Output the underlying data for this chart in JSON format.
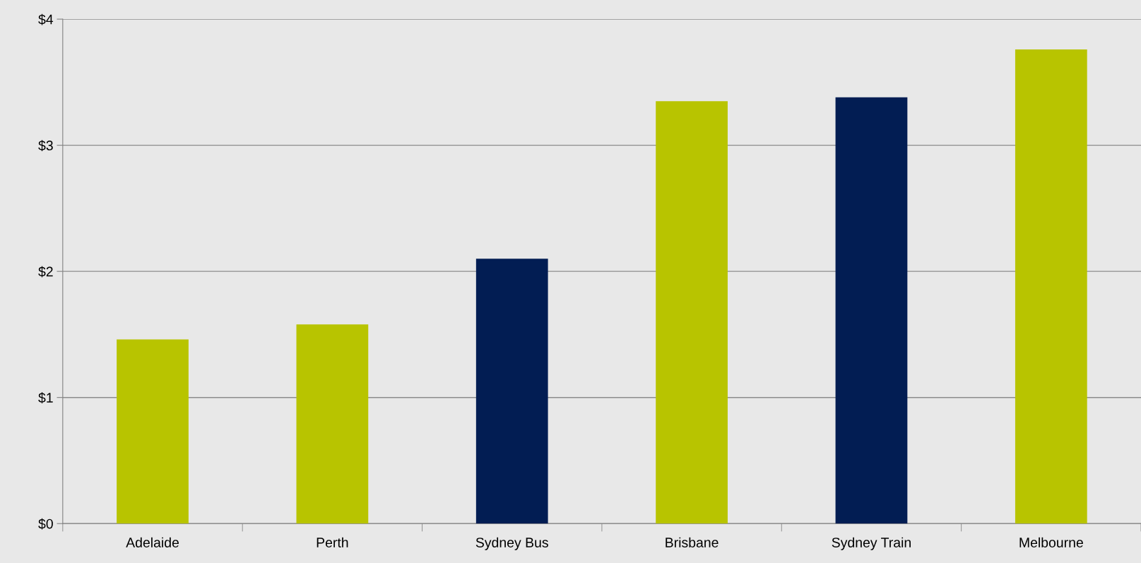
{
  "chart_data": {
    "type": "bar",
    "categories": [
      "Adelaide",
      "Perth",
      "Sydney Bus",
      "Brisbane",
      "Sydney Train",
      "Melbourne"
    ],
    "values": [
      1.46,
      1.58,
      2.1,
      3.35,
      3.38,
      3.76
    ],
    "colors": [
      "#b8c400",
      "#b8c400",
      "#021d53",
      "#b8c400",
      "#021d53",
      "#b8c400"
    ],
    "ylim": [
      0,
      4
    ],
    "yticks": [
      {
        "value": 0,
        "label": "$0"
      },
      {
        "value": 1,
        "label": "$1"
      },
      {
        "value": 2,
        "label": "$2"
      },
      {
        "value": 3,
        "label": "$3"
      },
      {
        "value": 4,
        "label": "$4"
      }
    ],
    "grid": "y",
    "legend": false
  }
}
